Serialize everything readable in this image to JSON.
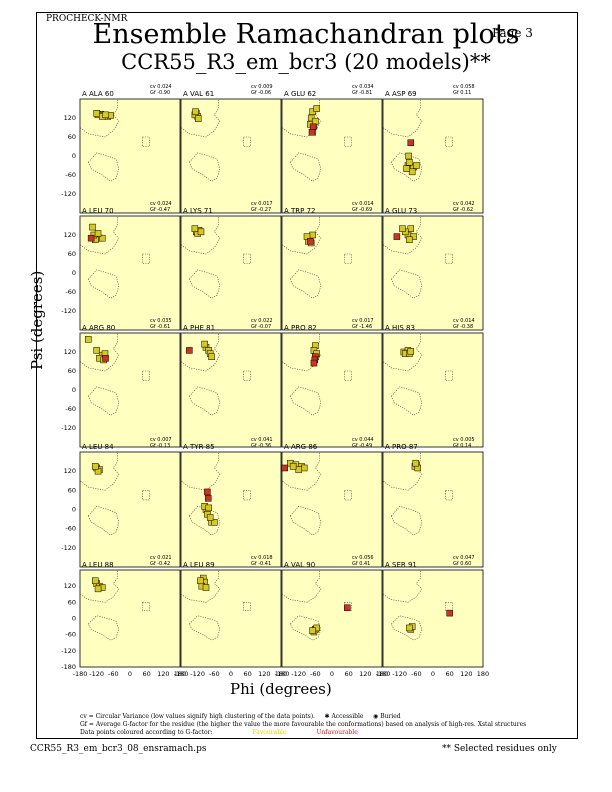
{
  "header": {
    "program": "PROCHECK-NMR",
    "page": "Page  3",
    "title": "Ensemble Ramachandran plots",
    "subtitle": "CCR55_R3_em_bcr3 (20 models)**"
  },
  "footer": {
    "filename": "CCR55_R3_em_bcr3_08_ensramach.ps",
    "note": "** Selected residues only"
  },
  "legend": {
    "line1": "cv = Circular Variance (low values signify high clustering of the data points).",
    "accessible": "Accessible",
    "buried": "Buried",
    "line2": "Gf = Average G-factor for the residue (the higher the value the more favourable the conformations) based on analysis of high-res. Xstal structures",
    "line3": "Data points coloured according to G-factor:",
    "favourable": "Favourable",
    "unfavourable": "Unfavourable"
  },
  "colors": {
    "panel_bg": "#ffffc0",
    "point_fill": "#d8c820",
    "point_unfav": "#cc3322",
    "region_line": "#444444"
  },
  "chart_data": {
    "type": "scatter",
    "xlabel": "Phi (degrees)",
    "ylabel": "Psi (degrees)",
    "xlim": [
      -180,
      180
    ],
    "ylim": [
      -180,
      180
    ],
    "xticks": [
      "-180",
      "-120",
      "-60",
      "0",
      "60",
      "120",
      "180"
    ],
    "yticks": [
      "120",
      "60",
      "0",
      "-60",
      "-120",
      "-180"
    ],
    "panels": [
      {
        "label": "A ALA 60",
        "cv": "cv 0.024",
        "gf": "Gf -0.90",
        "points": [
          [
            -105,
            132
          ],
          [
            -115,
            130
          ],
          [
            -95,
            128
          ],
          [
            -80,
            125
          ],
          [
            -120,
            135
          ],
          [
            -70,
            128
          ],
          [
            -100,
            125
          ],
          [
            -88,
            130
          ]
        ]
      },
      {
        "label": "A VAL 61",
        "cv": "cv 0.009",
        "gf": "Gf -0.06",
        "points": [
          [
            -125,
            135
          ],
          [
            -120,
            125
          ],
          [
            -130,
            130
          ],
          [
            -118,
            118
          ],
          [
            -128,
            140
          ]
        ]
      },
      {
        "label": "A GLU 62",
        "cv": "cv 0.034",
        "gf": "Gf -0.81",
        "points": [
          [
            -70,
            140
          ],
          [
            -75,
            120
          ],
          [
            -65,
            95
          ],
          [
            -78,
            100
          ],
          [
            -60,
            110
          ],
          [
            -70,
            75
          ],
          [
            -55,
            150
          ]
        ],
        "unfav": [
          [
            -68,
            92
          ],
          [
            -72,
            75
          ]
        ]
      },
      {
        "label": "A ASP 69",
        "cv": "cv 0.058",
        "gf": "Gf 0.11",
        "points": [
          [
            -90,
            -30
          ],
          [
            -80,
            -40
          ],
          [
            -70,
            -35
          ],
          [
            -85,
            -20
          ],
          [
            -75,
            -50
          ],
          [
            -95,
            -40
          ],
          [
            -60,
            -30
          ],
          [
            -88,
            0
          ]
        ],
        "unfav": [
          [
            -80,
            42
          ]
        ]
      },
      {
        "label": "A LEU 70",
        "cv": "cv 0.024",
        "gf": "Gf -0.47",
        "points": [
          [
            -135,
            145
          ],
          [
            -110,
            110
          ],
          [
            -125,
            105
          ],
          [
            -100,
            110
          ],
          [
            -130,
            120
          ],
          [
            -115,
            125
          ]
        ],
        "unfav": [
          [
            -140,
            110
          ]
        ]
      },
      {
        "label": "A LYS 71",
        "cv": "cv 0.017",
        "gf": "Gf -0.27",
        "points": [
          [
            -125,
            130
          ],
          [
            -115,
            135
          ],
          [
            -120,
            125
          ],
          [
            -108,
            130
          ],
          [
            -130,
            140
          ]
        ]
      },
      {
        "label": "A TRP 72",
        "cv": "cv 0.014",
        "gf": "Gf -0.69",
        "points": [
          [
            -80,
            110
          ],
          [
            -85,
            100
          ],
          [
            -70,
            120
          ],
          [
            -90,
            115
          ],
          [
            -75,
            95
          ]
        ],
        "unfav": [
          [
            -78,
            100
          ]
        ]
      },
      {
        "label": "A GLU 73",
        "cv": "cv 0.042",
        "gf": "Gf -0.62",
        "points": [
          [
            -80,
            140
          ],
          [
            -90,
            120
          ],
          [
            -70,
            115
          ],
          [
            -100,
            130
          ],
          [
            -85,
            105
          ],
          [
            -110,
            140
          ]
        ],
        "unfav": [
          [
            -130,
            115
          ]
        ]
      },
      {
        "label": "A ARG 80",
        "cv": "cv 0.035",
        "gf": "Gf -0.61",
        "points": [
          [
            -150,
            160
          ],
          [
            -120,
            125
          ],
          [
            -100,
            110
          ],
          [
            -90,
            115
          ],
          [
            -110,
            100
          ],
          [
            -95,
            95
          ]
        ],
        "unfav": [
          [
            -88,
            100
          ]
        ]
      },
      {
        "label": "A PHE 81",
        "cv": "cv 0.022",
        "gf": "Gf -0.07",
        "points": [
          [
            -90,
            135
          ],
          [
            -80,
            125
          ],
          [
            -75,
            115
          ],
          [
            -95,
            145
          ],
          [
            -70,
            105
          ]
        ],
        "unfav": [
          [
            -150,
            125
          ]
        ]
      },
      {
        "label": "A PRO 82",
        "cv": "cv 0.017",
        "gf": "Gf -1.46",
        "points": [
          [
            -60,
            140
          ],
          [
            -65,
            125
          ],
          [
            -55,
            115
          ]
        ],
        "unfav": [
          [
            -60,
            105
          ],
          [
            -62,
            95
          ],
          [
            -65,
            85
          ]
        ]
      },
      {
        "label": "A HIS 83",
        "cv": "cv 0.014",
        "gf": "Gf -0.38",
        "points": [
          [
            -105,
            120
          ],
          [
            -90,
            125
          ],
          [
            -100,
            115
          ],
          [
            -85,
            115
          ],
          [
            -80,
            122
          ]
        ]
      },
      {
        "label": "A LEU 84",
        "cv": "cv 0.007",
        "gf": "Gf -0.13",
        "points": [
          [
            -120,
            130
          ],
          [
            -110,
            125
          ],
          [
            -115,
            120
          ],
          [
            -125,
            135
          ]
        ]
      },
      {
        "label": "A TYR 85",
        "cv": "cv 0.041",
        "gf": "Gf -0.36",
        "points": [
          [
            -90,
            0
          ],
          [
            -85,
            -15
          ],
          [
            -95,
            10
          ],
          [
            -80,
            5
          ],
          [
            -70,
            -40
          ],
          [
            -60,
            -40
          ],
          [
            -75,
            -25
          ]
        ],
        "unfav": [
          [
            -85,
            55
          ],
          [
            -82,
            35
          ]
        ]
      },
      {
        "label": "A ARG 86",
        "cv": "cv 0.044",
        "gf": "Gf -0.49",
        "points": [
          [
            -150,
            145
          ],
          [
            -130,
            140
          ],
          [
            -110,
            135
          ],
          [
            -100,
            130
          ],
          [
            -120,
            125
          ],
          [
            -140,
            135
          ]
        ],
        "unfav": [
          [
            -170,
            130
          ]
        ]
      },
      {
        "label": "A PRO 87",
        "cv": "cv 0.005",
        "gf": "Gf 0.14",
        "points": [
          [
            -60,
            140
          ],
          [
            -65,
            135
          ],
          [
            -55,
            130
          ],
          [
            -62,
            145
          ]
        ]
      },
      {
        "label": "A LEU 88",
        "cv": "cv 0.021",
        "gf": "Gf -0.42",
        "points": [
          [
            -120,
            130
          ],
          [
            -110,
            120
          ],
          [
            -100,
            115
          ],
          [
            -115,
            110
          ],
          [
            -125,
            140
          ]
        ]
      },
      {
        "label": "A LEU 89",
        "cv": "cv 0.018",
        "gf": "Gf -0.41",
        "points": [
          [
            -100,
            150
          ],
          [
            -95,
            135
          ],
          [
            -105,
            120
          ],
          [
            -90,
            115
          ],
          [
            -110,
            140
          ]
        ]
      },
      {
        "label": "A VAL 90",
        "cv": "cv 0.056",
        "gf": "Gf 0.41",
        "points": [
          [
            -60,
            -40
          ],
          [
            -65,
            -50
          ],
          [
            -55,
            -35
          ],
          [
            -70,
            -45
          ]
        ],
        "unfav": [
          [
            55,
            40
          ]
        ]
      },
      {
        "label": "A SER 91",
        "cv": "cv 0.047",
        "gf": "Gf 0.60",
        "points": [
          [
            -80,
            -40
          ],
          [
            -75,
            -30
          ],
          [
            -85,
            -35
          ]
        ],
        "unfav": [
          [
            60,
            20
          ]
        ]
      }
    ]
  }
}
